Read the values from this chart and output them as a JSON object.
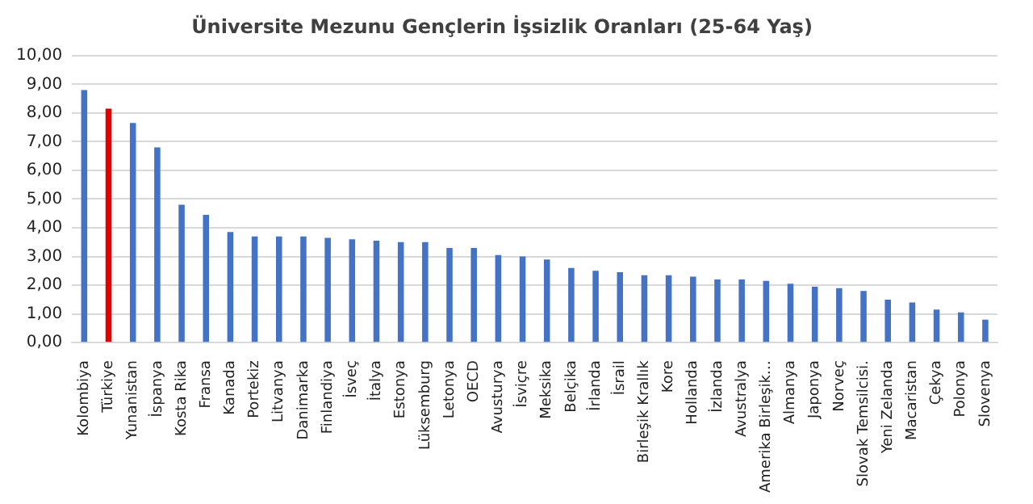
{
  "chart_data": {
    "type": "bar",
    "title": "Üniversite Mezunu Gençlerin İşsizlik Oranları (25-64 Yaş)",
    "categories": [
      "Kolombiya",
      "Türkiye",
      "Yunanistan",
      "İspanya",
      "Kosta Rika",
      "Fransa",
      "Kanada",
      "Portekiz",
      "Litvanya",
      "Danimarka",
      "Finlandiya",
      "İsveç",
      "İtalya",
      "Estonya",
      "Lüksemburg",
      "Letonya",
      "OECD",
      "Avusturya",
      "İsviçre",
      "Meksika",
      "Belçika",
      "İrlanda",
      "İsrail",
      "Birleşik Krallık",
      "Kore",
      "Hollanda",
      "İzlanda",
      "Avustralya",
      "Amerika Birleşik…",
      "Almanya",
      "Japonya",
      "Norveç",
      "Slovak Temsilcisi.",
      "Yeni Zelanda",
      "Macaristan",
      "Çekya",
      "Polonya",
      "Slovenya"
    ],
    "values": [
      8.8,
      8.15,
      7.65,
      6.8,
      4.8,
      4.45,
      3.85,
      3.7,
      3.7,
      3.7,
      3.65,
      3.6,
      3.55,
      3.5,
      3.5,
      3.3,
      3.3,
      3.05,
      3.0,
      2.9,
      2.6,
      2.5,
      2.45,
      2.35,
      2.35,
      2.3,
      2.2,
      2.2,
      2.15,
      2.05,
      1.95,
      1.9,
      1.8,
      1.5,
      1.4,
      1.15,
      1.05,
      0.8
    ],
    "colors": [
      "#4472c4",
      "#e00000",
      "#4472c4",
      "#4472c4",
      "#4472c4",
      "#4472c4",
      "#4472c4",
      "#4472c4",
      "#4472c4",
      "#4472c4",
      "#4472c4",
      "#4472c4",
      "#4472c4",
      "#4472c4",
      "#4472c4",
      "#4472c4",
      "#4472c4",
      "#4472c4",
      "#4472c4",
      "#4472c4",
      "#4472c4",
      "#4472c4",
      "#4472c4",
      "#4472c4",
      "#4472c4",
      "#4472c4",
      "#4472c4",
      "#4472c4",
      "#4472c4",
      "#4472c4",
      "#4472c4",
      "#4472c4",
      "#4472c4",
      "#4472c4",
      "#4472c4",
      "#4472c4",
      "#4472c4",
      "#4472c4"
    ],
    "ylim": [
      0,
      10
    ],
    "yticks": [
      {
        "value": 0,
        "label": "0,00"
      },
      {
        "value": 1,
        "label": "1,00"
      },
      {
        "value": 2,
        "label": "2,00"
      },
      {
        "value": 3,
        "label": "3,00"
      },
      {
        "value": 4,
        "label": "4,00"
      },
      {
        "value": 5,
        "label": "5,00"
      },
      {
        "value": 6,
        "label": "6,00"
      },
      {
        "value": 7,
        "label": "7,00"
      },
      {
        "value": 8,
        "label": "8,00"
      },
      {
        "value": 9,
        "label": "9,00"
      },
      {
        "value": 10,
        "label": "10,00"
      }
    ],
    "grid": "y",
    "legend": false
  }
}
